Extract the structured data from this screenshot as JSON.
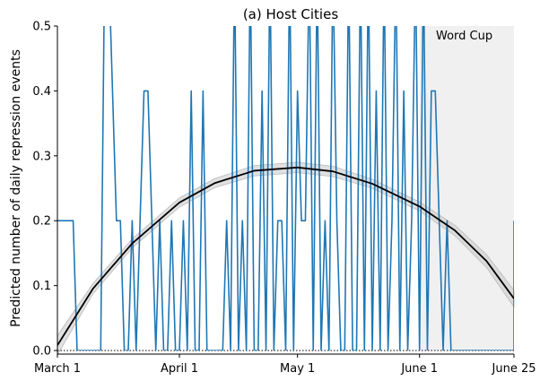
{
  "chart_data": {
    "type": "line",
    "title": "(a) Host Cities",
    "xlabel": "",
    "ylabel": "Predicted number of daily repression events",
    "x_start": "2014-03-01",
    "x_end": "2014-06-25",
    "xlim": [
      "2014-03-01",
      "2014-06-25"
    ],
    "ylim": [
      0,
      0.5
    ],
    "x_ticks": [
      {
        "date": "2014-03-01",
        "label": "March 1"
      },
      {
        "date": "2014-04-01",
        "label": "April 1"
      },
      {
        "date": "2014-05-01",
        "label": "May 1"
      },
      {
        "date": "2014-06-01",
        "label": "June 1"
      },
      {
        "date": "2014-06-25",
        "label": "June 25"
      }
    ],
    "y_ticks": [
      0.0,
      0.1,
      0.2,
      0.3,
      0.4,
      0.5
    ],
    "y_tick_labels": [
      "0.0",
      "0.1",
      "0.2",
      "0.3",
      "0.4",
      "0.5"
    ],
    "baseline": 0.0,
    "shaded_region": {
      "start": "2014-06-01",
      "end": "2014-06-25",
      "label": "Word Cup",
      "color": "#f0f0f0"
    },
    "series": [
      {
        "color": "#1f77b4",
        "points": [
          [
            "2014-03-01",
            0.2
          ],
          [
            "2014-03-05",
            0.2
          ],
          [
            "2014-03-06",
            0.0
          ],
          [
            "2014-03-12",
            0.0
          ],
          [
            "2014-03-13",
            0.6
          ],
          [
            "2014-03-14",
            0.6
          ],
          [
            "2014-03-16",
            0.2
          ],
          [
            "2014-03-17",
            0.2
          ],
          [
            "2014-03-18",
            0.0
          ],
          [
            "2014-03-19",
            0.0
          ],
          [
            "2014-03-20",
            0.2
          ],
          [
            "2014-03-21",
            0.0
          ],
          [
            "2014-03-23",
            0.4
          ],
          [
            "2014-03-24",
            0.4
          ],
          [
            "2014-03-26",
            0.0
          ],
          [
            "2014-03-27",
            0.2
          ],
          [
            "2014-03-28",
            0.0
          ],
          [
            "2014-03-29",
            0.0
          ],
          [
            "2014-03-30",
            0.2
          ],
          [
            "2014-03-31",
            0.0
          ],
          [
            "2014-04-01",
            0.0
          ],
          [
            "2014-04-02",
            0.2
          ],
          [
            "2014-04-03",
            0.0
          ],
          [
            "2014-04-04",
            0.4
          ],
          [
            "2014-04-05",
            0.0
          ],
          [
            "2014-04-06",
            0.0
          ],
          [
            "2014-04-07",
            0.4
          ],
          [
            "2014-04-08",
            0.0
          ],
          [
            "2014-04-12",
            0.0
          ],
          [
            "2014-04-13",
            0.2
          ],
          [
            "2014-04-14",
            0.0
          ],
          [
            "2014-04-15",
            0.6
          ],
          [
            "2014-04-16",
            0.0
          ],
          [
            "2014-04-17",
            0.2
          ],
          [
            "2014-04-18",
            0.0
          ],
          [
            "2014-04-19",
            0.6
          ],
          [
            "2014-04-20",
            0.0
          ],
          [
            "2014-04-21",
            0.0
          ],
          [
            "2014-04-22",
            0.4
          ],
          [
            "2014-04-23",
            0.0
          ],
          [
            "2014-04-24",
            0.6
          ],
          [
            "2014-04-25",
            0.0
          ],
          [
            "2014-04-26",
            0.2
          ],
          [
            "2014-04-27",
            0.2
          ],
          [
            "2014-04-28",
            0.0
          ],
          [
            "2014-04-29",
            0.6
          ],
          [
            "2014-04-30",
            0.0
          ],
          [
            "2014-05-01",
            0.4
          ],
          [
            "2014-05-02",
            0.2
          ],
          [
            "2014-05-03",
            0.2
          ],
          [
            "2014-05-04",
            0.6
          ],
          [
            "2014-05-05",
            0.0
          ],
          [
            "2014-05-06",
            0.6
          ],
          [
            "2014-05-07",
            0.0
          ],
          [
            "2014-05-08",
            0.2
          ],
          [
            "2014-05-09",
            0.0
          ],
          [
            "2014-05-10",
            0.6
          ],
          [
            "2014-05-11",
            0.2
          ],
          [
            "2014-05-12",
            0.0
          ],
          [
            "2014-05-13",
            0.0
          ],
          [
            "2014-05-14",
            0.6
          ],
          [
            "2014-05-15",
            0.0
          ],
          [
            "2014-05-16",
            0.0
          ],
          [
            "2014-05-17",
            0.6
          ],
          [
            "2014-05-18",
            0.0
          ],
          [
            "2014-05-19",
            0.6
          ],
          [
            "2014-05-20",
            0.0
          ],
          [
            "2014-05-21",
            0.4
          ],
          [
            "2014-05-22",
            0.0
          ],
          [
            "2014-05-23",
            0.6
          ],
          [
            "2014-05-24",
            0.0
          ],
          [
            "2014-05-25",
            0.2
          ],
          [
            "2014-05-26",
            0.6
          ],
          [
            "2014-05-27",
            0.0
          ],
          [
            "2014-05-28",
            0.4
          ],
          [
            "2014-05-29",
            0.0
          ],
          [
            "2014-05-30",
            0.2
          ],
          [
            "2014-05-31",
            0.6
          ],
          [
            "2014-06-01",
            0.0
          ],
          [
            "2014-06-02",
            0.6
          ],
          [
            "2014-06-03",
            0.0
          ],
          [
            "2014-06-04",
            0.4
          ],
          [
            "2014-06-05",
            0.4
          ],
          [
            "2014-06-06",
            0.2
          ],
          [
            "2014-06-07",
            0.0
          ],
          [
            "2014-06-08",
            0.2
          ],
          [
            "2014-06-09",
            0.0
          ],
          [
            "2014-06-25",
            0.0
          ],
          [
            "2014-06-25",
            0.2
          ]
        ]
      },
      {
        "color": "#000000",
        "points": [
          [
            "2014-03-01",
            0.008
          ],
          [
            "2014-03-10",
            0.095
          ],
          [
            "2014-03-20",
            0.165
          ],
          [
            "2014-04-01",
            0.228
          ],
          [
            "2014-04-10",
            0.258
          ],
          [
            "2014-04-20",
            0.277
          ],
          [
            "2014-05-01",
            0.282
          ],
          [
            "2014-05-10",
            0.276
          ],
          [
            "2014-05-20",
            0.257
          ],
          [
            "2014-06-01",
            0.222
          ],
          [
            "2014-06-10",
            0.185
          ],
          [
            "2014-06-18",
            0.138
          ],
          [
            "2014-06-25",
            0.08
          ]
        ],
        "band": [
          0.015,
          0.008,
          0.007,
          0.007,
          0.007,
          0.008,
          0.008,
          0.008,
          0.007,
          0.007,
          0.008,
          0.01,
          0.013
        ]
      }
    ]
  }
}
